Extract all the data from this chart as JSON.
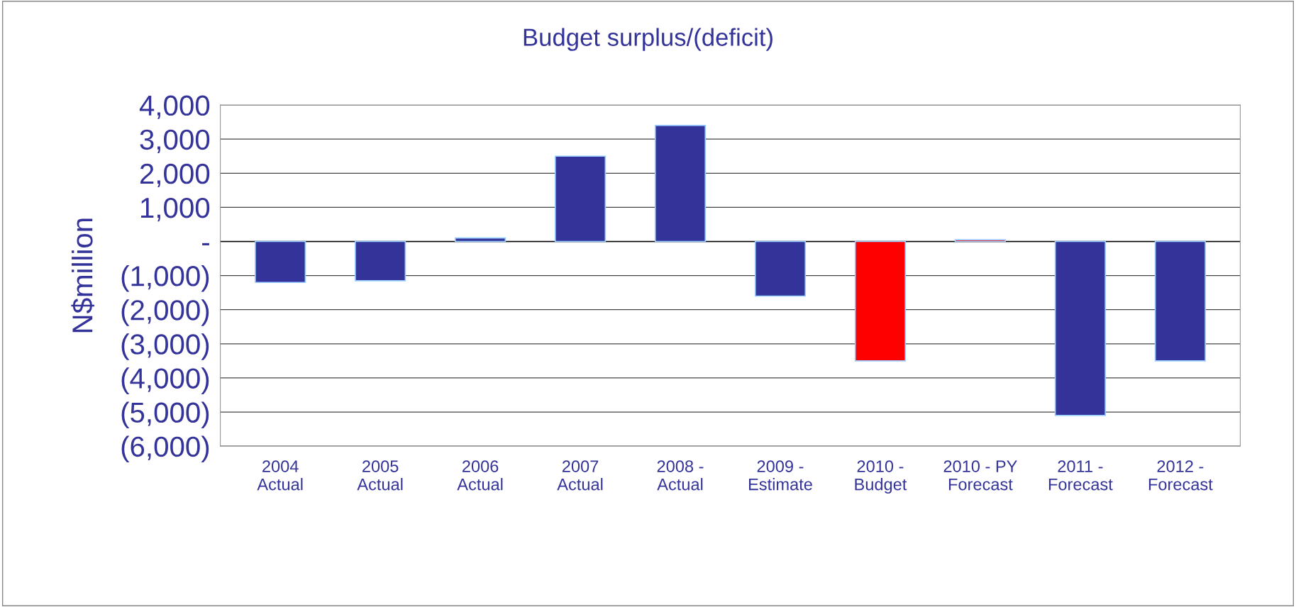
{
  "chart_data": {
    "type": "bar",
    "title": "Budget surplus/(deficit)",
    "ylabel": "N$million",
    "categories": [
      "2004\nActual",
      "2005\nActual",
      "2006\nActual",
      "2007\nActual",
      "2008 -\nActual",
      "2009 -\nEstimate",
      "2010 -\nBudget",
      "2010 - PY\nForecast",
      "2011 -\nForecast",
      "2012 -\nForecast"
    ],
    "values": [
      -1200,
      -1150,
      100,
      2500,
      3400,
      -1600,
      -3500,
      50,
      -5100,
      -3500
    ],
    "colors": [
      "#333399",
      "#333399",
      "#333399",
      "#333399",
      "#333399",
      "#333399",
      "#ff0000",
      "#ff0000",
      "#333399",
      "#333399"
    ],
    "ylim": [
      -6000,
      4000
    ],
    "yticks": [
      {
        "value": -6000,
        "label": "(6,000)"
      },
      {
        "value": -5000,
        "label": "(5,000)"
      },
      {
        "value": -4000,
        "label": "(4,000)"
      },
      {
        "value": -3000,
        "label": "(3,000)"
      },
      {
        "value": -2000,
        "label": "(2,000)"
      },
      {
        "value": -1000,
        "label": "(1,000)"
      },
      {
        "value": 0,
        "label": "-"
      },
      {
        "value": 1000,
        "label": "1,000"
      },
      {
        "value": 2000,
        "label": "2,000"
      },
      {
        "value": 3000,
        "label": "3,000"
      },
      {
        "value": 4000,
        "label": "4,000"
      }
    ],
    "grid": "y",
    "legend": false
  }
}
